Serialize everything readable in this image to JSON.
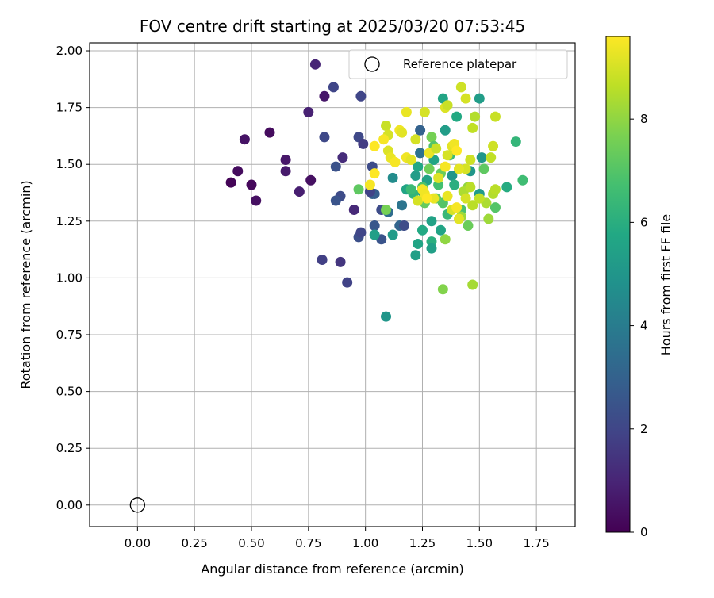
{
  "chart_data": {
    "type": "scatter",
    "title": "FOV centre drift starting at 2025/03/20 07:53:45",
    "xlabel": "Angular distance from reference (arcmin)",
    "ylabel": "Rotation from reference (arcmin)",
    "xlim": [
      -0.21,
      1.92
    ],
    "ylim": [
      -0.095,
      2.035
    ],
    "xticks": [
      "0.00",
      "0.25",
      "0.50",
      "0.75",
      "1.00",
      "1.25",
      "1.50",
      "1.75"
    ],
    "yticks": [
      "0.00",
      "0.25",
      "0.50",
      "0.75",
      "1.00",
      "1.25",
      "1.50",
      "1.75",
      "2.00"
    ],
    "grid": true,
    "legend": {
      "location": "top-right",
      "entries": [
        "Reference platepar"
      ]
    },
    "colorbar": {
      "label": "Hours from first FF file",
      "range": [
        0,
        9.6
      ],
      "ticks": [
        "0",
        "2",
        "4",
        "6",
        "8"
      ],
      "colormap": "viridis"
    },
    "reference_point": {
      "x": 0.0,
      "y": 0.0,
      "marker": "open-circle"
    },
    "series": [
      {
        "name": "",
        "points": [
          {
            "x": 0.41,
            "y": 1.42,
            "h": 0.1
          },
          {
            "x": 0.44,
            "y": 1.47,
            "h": 0.3
          },
          {
            "x": 0.5,
            "y": 1.41,
            "h": 0.2
          },
          {
            "x": 0.52,
            "y": 1.34,
            "h": 0.4
          },
          {
            "x": 0.47,
            "y": 1.61,
            "h": 0.5
          },
          {
            "x": 0.58,
            "y": 1.64,
            "h": 0.3
          },
          {
            "x": 0.65,
            "y": 1.52,
            "h": 0.6
          },
          {
            "x": 0.65,
            "y": 1.47,
            "h": 0.7
          },
          {
            "x": 0.71,
            "y": 1.38,
            "h": 0.8
          },
          {
            "x": 0.76,
            "y": 1.43,
            "h": 0.4
          },
          {
            "x": 0.75,
            "y": 1.73,
            "h": 0.9
          },
          {
            "x": 0.78,
            "y": 1.94,
            "h": 1.0
          },
          {
            "x": 0.82,
            "y": 1.8,
            "h": 0.6
          },
          {
            "x": 0.86,
            "y": 1.84,
            "h": 2.0
          },
          {
            "x": 0.82,
            "y": 1.62,
            "h": 2.1
          },
          {
            "x": 0.81,
            "y": 1.08,
            "h": 1.8
          },
          {
            "x": 0.87,
            "y": 1.49,
            "h": 2.4
          },
          {
            "x": 0.9,
            "y": 1.53,
            "h": 1.2
          },
          {
            "x": 0.89,
            "y": 1.36,
            "h": 2.2
          },
          {
            "x": 0.87,
            "y": 1.34,
            "h": 2.5
          },
          {
            "x": 0.89,
            "y": 1.07,
            "h": 1.5
          },
          {
            "x": 0.92,
            "y": 0.98,
            "h": 1.9
          },
          {
            "x": 0.95,
            "y": 1.3,
            "h": 1.1
          },
          {
            "x": 0.97,
            "y": 1.62,
            "h": 2.1
          },
          {
            "x": 0.99,
            "y": 1.59,
            "h": 1.7
          },
          {
            "x": 0.98,
            "y": 1.8,
            "h": 2.0
          },
          {
            "x": 0.97,
            "y": 1.18,
            "h": 2.3
          },
          {
            "x": 0.98,
            "y": 1.2,
            "h": 2.0
          },
          {
            "x": 1.03,
            "y": 1.49,
            "h": 2.2
          },
          {
            "x": 1.03,
            "y": 1.37,
            "h": 3.0
          },
          {
            "x": 1.04,
            "y": 1.23,
            "h": 2.6
          },
          {
            "x": 1.07,
            "y": 1.17,
            "h": 2.5
          },
          {
            "x": 1.07,
            "y": 1.3,
            "h": 2.2
          },
          {
            "x": 1.04,
            "y": 1.37,
            "h": 2.8
          },
          {
            "x": 1.02,
            "y": 1.38,
            "h": 1.9
          },
          {
            "x": 1.1,
            "y": 1.29,
            "h": 3.4
          },
          {
            "x": 1.15,
            "y": 1.23,
            "h": 3.1
          },
          {
            "x": 1.16,
            "y": 1.32,
            "h": 3.7
          },
          {
            "x": 1.17,
            "y": 1.23,
            "h": 2.2
          },
          {
            "x": 1.24,
            "y": 1.65,
            "h": 3.0
          },
          {
            "x": 1.24,
            "y": 1.55,
            "h": 3.6
          },
          {
            "x": 1.09,
            "y": 0.83,
            "h": 5.0
          },
          {
            "x": 1.12,
            "y": 1.44,
            "h": 4.6
          },
          {
            "x": 1.12,
            "y": 1.19,
            "h": 5.2
          },
          {
            "x": 1.04,
            "y": 1.19,
            "h": 5.4
          },
          {
            "x": 1.22,
            "y": 1.1,
            "h": 5.4
          },
          {
            "x": 1.23,
            "y": 1.15,
            "h": 5.6
          },
          {
            "x": 1.25,
            "y": 1.21,
            "h": 5.8
          },
          {
            "x": 1.29,
            "y": 1.25,
            "h": 5.5
          },
          {
            "x": 1.29,
            "y": 1.16,
            "h": 6.0
          },
          {
            "x": 1.29,
            "y": 1.13,
            "h": 5.4
          },
          {
            "x": 1.33,
            "y": 1.21,
            "h": 5.6
          },
          {
            "x": 1.22,
            "y": 1.45,
            "h": 5.3
          },
          {
            "x": 1.18,
            "y": 1.39,
            "h": 5.6
          },
          {
            "x": 1.23,
            "y": 1.49,
            "h": 5.7
          },
          {
            "x": 1.25,
            "y": 1.38,
            "h": 5.2
          },
          {
            "x": 1.27,
            "y": 1.43,
            "h": 5.5
          },
          {
            "x": 1.3,
            "y": 1.52,
            "h": 5.6
          },
          {
            "x": 1.35,
            "y": 1.65,
            "h": 5.3
          },
          {
            "x": 1.34,
            "y": 1.79,
            "h": 5.6
          },
          {
            "x": 1.38,
            "y": 1.45,
            "h": 5.0
          },
          {
            "x": 1.4,
            "y": 1.71,
            "h": 5.8
          },
          {
            "x": 1.46,
            "y": 1.47,
            "h": 5.0
          },
          {
            "x": 1.5,
            "y": 1.79,
            "h": 5.3
          },
          {
            "x": 1.5,
            "y": 1.37,
            "h": 5.2
          },
          {
            "x": 1.51,
            "y": 1.53,
            "h": 5.0
          },
          {
            "x": 1.62,
            "y": 1.4,
            "h": 5.9
          },
          {
            "x": 1.66,
            "y": 1.6,
            "h": 6.3
          },
          {
            "x": 1.69,
            "y": 1.43,
            "h": 6.6
          },
          {
            "x": 1.57,
            "y": 1.31,
            "h": 7.0
          },
          {
            "x": 1.52,
            "y": 1.48,
            "h": 7.2
          },
          {
            "x": 1.45,
            "y": 1.23,
            "h": 7.4
          },
          {
            "x": 1.42,
            "y": 1.3,
            "h": 6.8
          },
          {
            "x": 1.39,
            "y": 1.41,
            "h": 6.0
          },
          {
            "x": 1.37,
            "y": 1.54,
            "h": 6.5
          },
          {
            "x": 1.36,
            "y": 1.28,
            "h": 6.4
          },
          {
            "x": 1.34,
            "y": 1.33,
            "h": 7.0
          },
          {
            "x": 1.33,
            "y": 1.46,
            "h": 7.4
          },
          {
            "x": 1.32,
            "y": 1.41,
            "h": 6.7
          },
          {
            "x": 1.31,
            "y": 1.35,
            "h": 7.2
          },
          {
            "x": 1.29,
            "y": 1.62,
            "h": 7.6
          },
          {
            "x": 1.3,
            "y": 1.58,
            "h": 7.0
          },
          {
            "x": 1.28,
            "y": 1.48,
            "h": 7.5
          },
          {
            "x": 1.26,
            "y": 1.33,
            "h": 7.3
          },
          {
            "x": 1.25,
            "y": 1.4,
            "h": 6.9
          },
          {
            "x": 1.21,
            "y": 1.37,
            "h": 6.2
          },
          {
            "x": 1.2,
            "y": 1.39,
            "h": 6.5
          },
          {
            "x": 0.97,
            "y": 1.39,
            "h": 7.2
          },
          {
            "x": 1.09,
            "y": 1.3,
            "h": 7.6
          },
          {
            "x": 1.35,
            "y": 1.17,
            "h": 8.0
          },
          {
            "x": 1.34,
            "y": 0.95,
            "h": 7.8
          },
          {
            "x": 1.47,
            "y": 0.97,
            "h": 8.3
          },
          {
            "x": 1.42,
            "y": 1.27,
            "h": 8.2
          },
          {
            "x": 1.45,
            "y": 1.4,
            "h": 8.0
          },
          {
            "x": 1.43,
            "y": 1.38,
            "h": 8.4
          },
          {
            "x": 1.47,
            "y": 1.32,
            "h": 8.6
          },
          {
            "x": 1.53,
            "y": 1.33,
            "h": 8.4
          },
          {
            "x": 1.54,
            "y": 1.26,
            "h": 8.2
          },
          {
            "x": 1.56,
            "y": 1.37,
            "h": 8.5
          },
          {
            "x": 1.57,
            "y": 1.39,
            "h": 8.6
          },
          {
            "x": 1.55,
            "y": 1.53,
            "h": 8.7
          },
          {
            "x": 1.56,
            "y": 1.58,
            "h": 8.9
          },
          {
            "x": 1.57,
            "y": 1.71,
            "h": 8.8
          },
          {
            "x": 1.48,
            "y": 1.71,
            "h": 8.5
          },
          {
            "x": 1.47,
            "y": 1.66,
            "h": 8.7
          },
          {
            "x": 1.46,
            "y": 1.52,
            "h": 8.9
          },
          {
            "x": 1.44,
            "y": 1.48,
            "h": 9.0
          },
          {
            "x": 1.41,
            "y": 1.48,
            "h": 9.2
          },
          {
            "x": 1.42,
            "y": 1.84,
            "h": 8.9
          },
          {
            "x": 1.44,
            "y": 1.79,
            "h": 9.0
          },
          {
            "x": 1.35,
            "y": 1.75,
            "h": 9.1
          },
          {
            "x": 1.36,
            "y": 1.76,
            "h": 8.8
          },
          {
            "x": 1.26,
            "y": 1.73,
            "h": 9.0
          },
          {
            "x": 1.18,
            "y": 1.73,
            "h": 9.3
          },
          {
            "x": 1.15,
            "y": 1.65,
            "h": 9.4
          },
          {
            "x": 1.16,
            "y": 1.64,
            "h": 9.2
          },
          {
            "x": 1.09,
            "y": 1.67,
            "h": 8.8
          },
          {
            "x": 1.1,
            "y": 1.63,
            "h": 9.0
          },
          {
            "x": 1.08,
            "y": 1.61,
            "h": 9.5
          },
          {
            "x": 1.04,
            "y": 1.58,
            "h": 9.6
          },
          {
            "x": 1.1,
            "y": 1.56,
            "h": 9.1
          },
          {
            "x": 1.11,
            "y": 1.53,
            "h": 9.3
          },
          {
            "x": 1.13,
            "y": 1.51,
            "h": 9.5
          },
          {
            "x": 1.18,
            "y": 1.53,
            "h": 9.4
          },
          {
            "x": 1.2,
            "y": 1.52,
            "h": 9.2
          },
          {
            "x": 1.22,
            "y": 1.61,
            "h": 9.0
          },
          {
            "x": 1.28,
            "y": 1.55,
            "h": 9.3
          },
          {
            "x": 1.31,
            "y": 1.57,
            "h": 8.8
          },
          {
            "x": 1.35,
            "y": 1.49,
            "h": 9.5
          },
          {
            "x": 1.36,
            "y": 1.54,
            "h": 9.0
          },
          {
            "x": 1.38,
            "y": 1.58,
            "h": 9.2
          },
          {
            "x": 1.39,
            "y": 1.59,
            "h": 9.4
          },
          {
            "x": 1.4,
            "y": 1.56,
            "h": 9.6
          },
          {
            "x": 1.32,
            "y": 1.44,
            "h": 9.1
          },
          {
            "x": 1.3,
            "y": 1.35,
            "h": 9.3
          },
          {
            "x": 1.25,
            "y": 1.39,
            "h": 9.5
          },
          {
            "x": 1.23,
            "y": 1.34,
            "h": 9.0
          },
          {
            "x": 1.26,
            "y": 1.37,
            "h": 9.4
          },
          {
            "x": 1.27,
            "y": 1.35,
            "h": 9.6
          },
          {
            "x": 1.02,
            "y": 1.41,
            "h": 9.5
          },
          {
            "x": 1.04,
            "y": 1.46,
            "h": 9.6
          },
          {
            "x": 1.38,
            "y": 1.3,
            "h": 9.0
          },
          {
            "x": 1.36,
            "y": 1.36,
            "h": 9.3
          },
          {
            "x": 1.46,
            "y": 1.4,
            "h": 8.6
          },
          {
            "x": 1.44,
            "y": 1.35,
            "h": 9.0
          },
          {
            "x": 1.5,
            "y": 1.35,
            "h": 8.7
          },
          {
            "x": 1.41,
            "y": 1.26,
            "h": 9.2
          },
          {
            "x": 1.4,
            "y": 1.31,
            "h": 9.5
          }
        ]
      }
    ]
  }
}
